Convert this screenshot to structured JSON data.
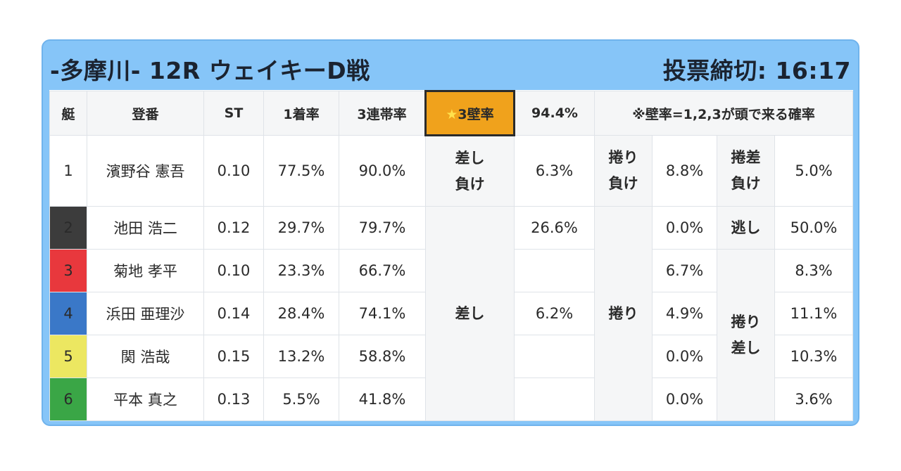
{
  "header": {
    "title": "-多摩川- 12R ウェイキーD戦",
    "deadline": "投票締切: 16:17"
  },
  "table": {
    "columns": {
      "boat": "艇",
      "reg": "登番",
      "st": "ST",
      "first_rate": "1着率",
      "top3_rate": "3連帯率",
      "wall_label": "3壁率",
      "wall_pct": "94.4%",
      "note": "※壁率=1,2,3が頭で来る確率"
    },
    "rows": [
      {
        "boat": "1",
        "name": "濱野谷 憲吾",
        "st": "0.10",
        "first": "77.5%",
        "top3": "90.0%"
      },
      {
        "boat": "2",
        "name": "池田 浩二",
        "st": "0.12",
        "first": "29.7%",
        "top3": "79.7%"
      },
      {
        "boat": "3",
        "name": "菊地 孝平",
        "st": "0.10",
        "first": "23.3%",
        "top3": "66.7%"
      },
      {
        "boat": "4",
        "name": "浜田 亜理沙",
        "st": "0.14",
        "first": "28.4%",
        "top3": "74.1%"
      },
      {
        "boat": "5",
        "name": "関 浩哉",
        "st": "0.15",
        "first": "13.2%",
        "top3": "58.8%"
      },
      {
        "boat": "6",
        "name": "平本 真之",
        "st": "0.13",
        "first": "5.5%",
        "top3": "41.8%"
      }
    ],
    "boat_colors": {
      "1": "#ffffff",
      "2": "#3c3c3c",
      "3": "#e8383d",
      "4": "#3a78c8",
      "5": "#ece761",
      "6": "#3aa646"
    },
    "patterns": {
      "sashi_make": {
        "line1": "差し",
        "line2": "負け",
        "value": "6.3%"
      },
      "makuri_make": {
        "line1": "捲り",
        "line2": "負け",
        "value": "8.8%"
      },
      "makurizashi_make": {
        "line1": "捲差",
        "line2": "負け",
        "value": "5.0%"
      },
      "sashi": {
        "label": "差し",
        "values": [
          "26.6%",
          "",
          "6.2%",
          "",
          ""
        ]
      },
      "makuri": {
        "label": "捲り",
        "values": [
          "0.0%",
          "6.7%",
          "4.9%",
          "0.0%",
          "0.0%"
        ]
      },
      "nige": {
        "label": "逃し",
        "value": "50.0%"
      },
      "makurizashi": {
        "line1": "捲り",
        "line2": "差し",
        "values": [
          "8.3%",
          "11.1%",
          "10.3%",
          "3.6%"
        ]
      }
    }
  }
}
